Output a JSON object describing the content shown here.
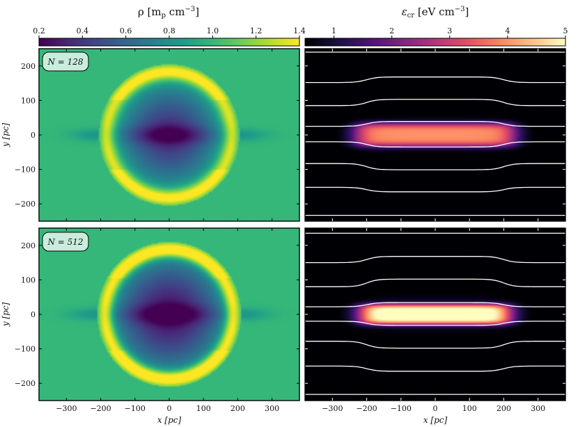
{
  "figure": {
    "panels_note": "2x2 grid: density (left) and cosmic-ray energy density (right) for two resolutions"
  },
  "colorbars": {
    "density": {
      "title": "ρ [m",
      "title_sub": "p",
      "title_tail": " cm",
      "title_sup": "−3",
      "title_close": "]",
      "ticks": [
        "0.2",
        "0.4",
        "0.6",
        "0.8",
        "1.0",
        "1.2",
        "1.4"
      ],
      "range": [
        0.2,
        1.4
      ],
      "colormap": "viridis"
    },
    "cr_energy": {
      "title": "ε",
      "title_sub": "cr",
      "title_tail": " [eV cm",
      "title_sup": "−3",
      "title_close": "]",
      "ticks": [
        "1",
        "2",
        "3",
        "4",
        "5"
      ],
      "range": [
        0.5,
        5.0
      ],
      "colormap": "magma"
    }
  },
  "panels": {
    "top_left": {
      "badge": "N = 128"
    },
    "bottom_left": {
      "badge": "N = 512"
    }
  },
  "axes": {
    "x_label": "x [pc]",
    "y_label": "y [pc]",
    "x_ticks": [
      "−300",
      "−200",
      "−100",
      "0",
      "100",
      "200",
      "300"
    ],
    "y_ticks": [
      "200",
      "100",
      "0",
      "−100",
      "−200"
    ]
  },
  "chart_data": [
    {
      "type": "heatmap",
      "title": "ρ [mp cm−3], N = 128",
      "xlabel": "x [pc]",
      "ylabel": "y [pc]",
      "xlim": [
        -380,
        380
      ],
      "ylim": [
        -250,
        250
      ],
      "clim": [
        0.2,
        1.4
      ],
      "colormap": "viridis",
      "structure": {
        "background": 1.0,
        "shell_radius_pc": 205,
        "shell_peak": 1.35,
        "cavity_min": 0.35,
        "cavity_radius_pc": 150
      }
    },
    {
      "type": "heatmap",
      "title": "εcr [eV cm−3], N = 128",
      "xlabel": "x [pc]",
      "ylabel": "y [pc]",
      "xlim": [
        -380,
        380
      ],
      "ylim": [
        -250,
        250
      ],
      "clim": [
        0.5,
        5.0
      ],
      "colormap": "magma",
      "structure": {
        "peak": 3.6,
        "half_length_pc": 230,
        "half_height_pc": 35
      },
      "field_lines_y_pc": [
        -233,
        -152,
        -83,
        -20,
        25,
        85,
        152,
        240
      ],
      "field_line_bulge_pc": [
        0,
        -13,
        -18,
        -15,
        14,
        18,
        16,
        0
      ]
    },
    {
      "type": "heatmap",
      "title": "ρ [mp cm−3], N = 512",
      "xlabel": "x [pc]",
      "ylabel": "y [pc]",
      "xlim": [
        -380,
        380
      ],
      "ylim": [
        -250,
        250
      ],
      "clim": [
        0.2,
        1.4
      ],
      "colormap": "viridis",
      "structure": {
        "background": 1.0,
        "shell_radius_pc": 210,
        "shell_peak": 1.4,
        "cavity_min": 0.25,
        "cavity_radius_pc": 175
      }
    },
    {
      "type": "heatmap",
      "title": "εcr [eV cm−3], N = 512",
      "xlabel": "x [pc]",
      "ylabel": "y [pc]",
      "xlim": [
        -380,
        380
      ],
      "ylim": [
        -250,
        250
      ],
      "clim": [
        0.5,
        5.0
      ],
      "colormap": "magma",
      "structure": {
        "peak": 4.9,
        "half_length_pc": 215,
        "half_height_pc": 30
      },
      "field_lines_y_pc": [
        -232,
        -150,
        -78,
        -20,
        22,
        80,
        150,
        235
      ],
      "field_line_bulge_pc": [
        0,
        -15,
        -20,
        -12,
        12,
        22,
        18,
        0
      ]
    }
  ]
}
